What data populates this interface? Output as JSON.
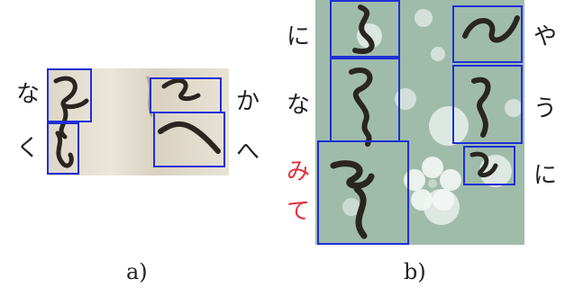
{
  "panel_a": {
    "caption": "a)",
    "left_labels": [
      "な",
      "く"
    ],
    "right_labels": [
      "か",
      "へ"
    ]
  },
  "panel_b": {
    "caption": "b)",
    "left_labels": [
      "に",
      "な"
    ],
    "left_labels_red": [
      "み",
      "て"
    ],
    "right_labels": [
      "や",
      "う",
      "に"
    ]
  },
  "colors": {
    "box_border": "#1f2fd6",
    "highlight_text": "#e0303a"
  }
}
